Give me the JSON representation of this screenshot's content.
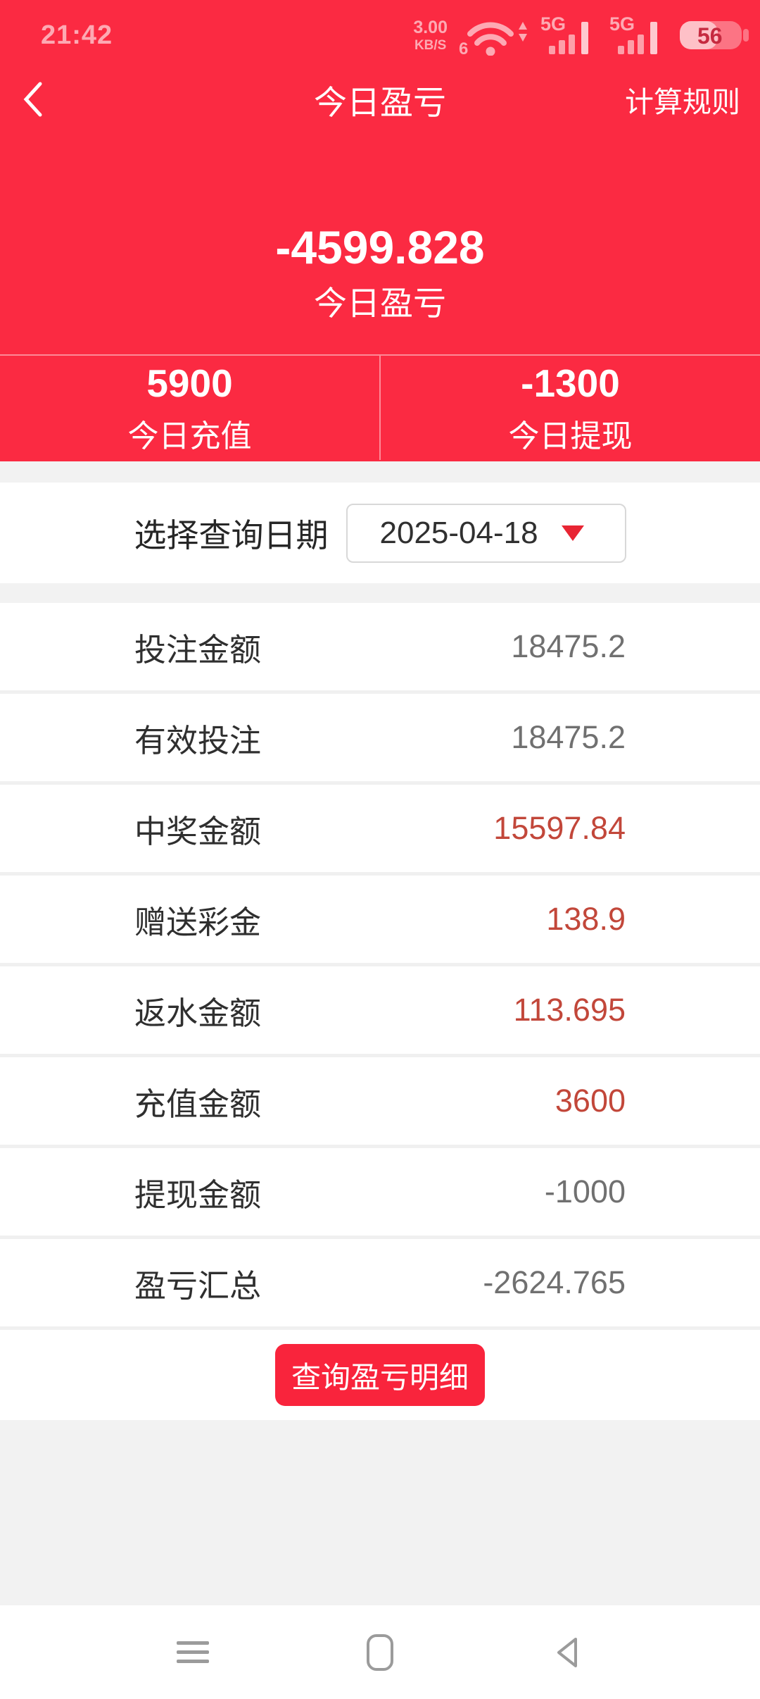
{
  "status_bar": {
    "time": "21:42",
    "net_speed_value": "3.00",
    "net_speed_unit": "KB/S",
    "wifi_badge": "6",
    "sim1_label": "5G",
    "sim2_label": "5G",
    "battery_percent": "56"
  },
  "header": {
    "title": "今日盈亏",
    "action": "计算规则"
  },
  "summary": {
    "amount": "-4599.828",
    "amount_label": "今日盈亏",
    "deposit_value": "5900",
    "deposit_label": "今日充值",
    "withdraw_value": "-1300",
    "withdraw_label": "今日提现"
  },
  "date_picker": {
    "label": "选择查询日期",
    "value": "2025-04-18"
  },
  "rows": [
    {
      "label": "投注金额",
      "value": "18475.2",
      "tone": "gray"
    },
    {
      "label": "有效投注",
      "value": "18475.2",
      "tone": "gray"
    },
    {
      "label": "中奖金额",
      "value": "15597.84",
      "tone": "red"
    },
    {
      "label": "赠送彩金",
      "value": "138.9",
      "tone": "red"
    },
    {
      "label": "返水金额",
      "value": "113.695",
      "tone": "red"
    },
    {
      "label": "充值金额",
      "value": "3600",
      "tone": "red"
    },
    {
      "label": "提现金额",
      "value": "-1000",
      "tone": "gray"
    },
    {
      "label": "盈亏汇总",
      "value": "-2624.765",
      "tone": "gray"
    }
  ],
  "detail_button": {
    "label": "查询盈亏明细"
  },
  "colors": {
    "primary_red": "#fb2a42",
    "button_red": "#f9243c",
    "value_red": "#c2473a",
    "value_gray": "#707070",
    "label_dark": "#2f2f2f",
    "band_gray": "#f2f2f2",
    "separator_gray": "#f0f0f0",
    "triangle_red": "#e82533",
    "nav_icon_gray": "#9b9b9b"
  }
}
